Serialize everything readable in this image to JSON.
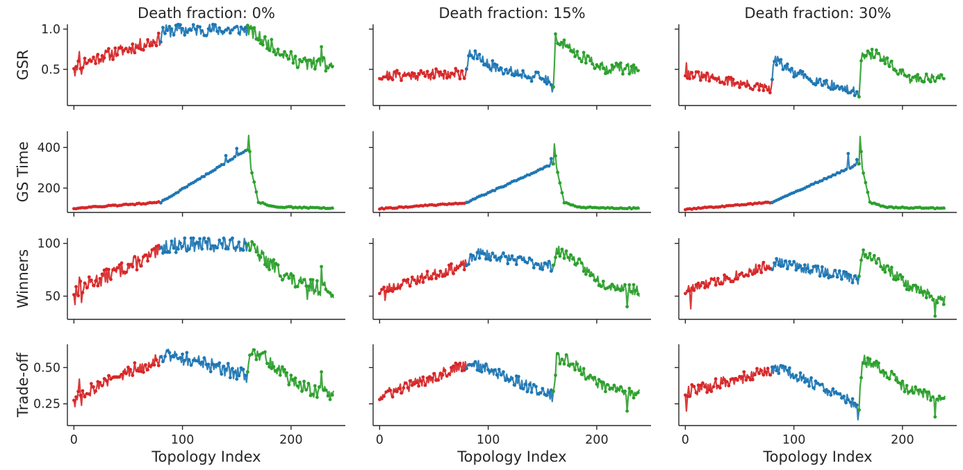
{
  "chart_data": {
    "type": "line",
    "grid": false,
    "columns": [
      {
        "title": "Death fraction: 0%"
      },
      {
        "title": "Death fraction: 15%"
      },
      {
        "title": "Death fraction: 30%"
      }
    ],
    "xlabel": "Topology Index",
    "xlim": [
      -6,
      250
    ],
    "xticks": [
      0,
      100,
      200
    ],
    "colors": {
      "first": "#d62728",
      "second": "#1f77b4",
      "third": "#2ca02c"
    },
    "segments": [
      [
        0,
        80
      ],
      [
        80,
        160
      ],
      [
        160,
        239
      ]
    ],
    "rows": [
      {
        "ylabel": "GSR",
        "ylim": [
          0.05,
          1.06
        ],
        "yticks": [
          0.5,
          1.0
        ],
        "tick_labels": [
          "0.5",
          "1.0"
        ]
      },
      {
        "ylabel": "GS Time",
        "ylim": [
          80,
          480
        ],
        "yticks": [
          200,
          400
        ],
        "tick_labels": [
          "200",
          "400"
        ]
      },
      {
        "ylabel": "Winners",
        "ylim": [
          28,
          105
        ],
        "yticks": [
          50,
          100
        ],
        "tick_labels": [
          "50",
          "100"
        ]
      },
      {
        "ylabel": "Trade-off",
        "ylim": [
          0.1,
          0.66
        ],
        "yticks": [
          0.25,
          0.5
        ],
        "tick_labels": [
          "0.25",
          "0.50"
        ]
      }
    ],
    "panels": [
      [
        {
          "anchors": [
            [
              0,
              0.55
            ],
            [
              80,
              0.88
            ],
            [
              80,
              0.97
            ],
            [
              100,
              0.99
            ],
            [
              160,
              0.99
            ],
            [
              160,
              1.0
            ],
            [
              175,
              0.85
            ],
            [
              205,
              0.6
            ],
            [
              239,
              0.55
            ]
          ],
          "noise": 0.08,
          "spikes": [
            [
              1,
              0.42
            ],
            [
              5,
              0.72
            ],
            [
              7,
              0.44
            ],
            [
              145,
              1.0
            ],
            [
              215,
              0.5
            ],
            [
              228,
              0.78
            ],
            [
              232,
              0.48
            ]
          ],
          "seed": 11
        },
        {
          "anchors": [
            [
              0,
              100
            ],
            [
              80,
              130
            ],
            [
              160,
              390
            ],
            [
              161,
              460
            ],
            [
              163,
              300
            ],
            [
              170,
              130
            ],
            [
              185,
              108
            ],
            [
              239,
              100
            ]
          ],
          "noise": 3,
          "spikes": [
            [
              150,
              395
            ],
            [
              140,
              360
            ]
          ],
          "seed": 12
        },
        {
          "anchors": [
            [
              0,
              55
            ],
            [
              80,
              92
            ],
            [
              80,
              97
            ],
            [
              100,
              99
            ],
            [
              160,
              99
            ],
            [
              160,
              100
            ],
            [
              175,
              85
            ],
            [
              205,
              62
            ],
            [
              239,
              55
            ]
          ],
          "noise": 7,
          "spikes": [
            [
              1,
              42
            ],
            [
              5,
              68
            ],
            [
              7,
              44
            ],
            [
              215,
              47
            ],
            [
              228,
              78
            ]
          ],
          "seed": 13
        },
        {
          "anchors": [
            [
              0,
              0.3
            ],
            [
              80,
              0.57
            ],
            [
              90,
              0.59
            ],
            [
              160,
              0.44
            ],
            [
              163,
              0.6
            ],
            [
              175,
              0.58
            ],
            [
              205,
              0.38
            ],
            [
              239,
              0.3
            ]
          ],
          "noise": 0.05,
          "spikes": [
            [
              1,
              0.23
            ],
            [
              5,
              0.42
            ],
            [
              7,
              0.24
            ],
            [
              228,
              0.47
            ]
          ],
          "seed": 14
        }
      ],
      [
        {
          "anchors": [
            [
              0,
              0.42
            ],
            [
              80,
              0.45
            ],
            [
              82,
              0.73
            ],
            [
              100,
              0.55
            ],
            [
              160,
              0.35
            ],
            [
              160,
              0.18
            ],
            [
              162,
              0.88
            ],
            [
              175,
              0.75
            ],
            [
              205,
              0.52
            ],
            [
              239,
              0.5
            ]
          ],
          "noise": 0.07,
          "spikes": [
            [
              159,
              0.22
            ],
            [
              163,
              0.87
            ]
          ],
          "seed": 21
        },
        {
          "anchors": [
            [
              0,
              98
            ],
            [
              80,
              128
            ],
            [
              160,
              320
            ],
            [
              161,
              415
            ],
            [
              163,
              300
            ],
            [
              170,
              130
            ],
            [
              185,
              105
            ],
            [
              239,
              100
            ]
          ],
          "noise": 3,
          "spikes": [
            [
              158,
              345
            ]
          ],
          "seed": 22
        },
        {
          "anchors": [
            [
              0,
              55
            ],
            [
              80,
              80
            ],
            [
              90,
              91
            ],
            [
              160,
              78
            ],
            [
              163,
              93
            ],
            [
              175,
              88
            ],
            [
              205,
              62
            ],
            [
              239,
              55
            ]
          ],
          "noise": 5,
          "spikes": [
            [
              5,
              46
            ],
            [
              228,
              40
            ]
          ],
          "seed": 23
        },
        {
          "anchors": [
            [
              0,
              0.3
            ],
            [
              80,
              0.52
            ],
            [
              85,
              0.53
            ],
            [
              160,
              0.3
            ],
            [
              163,
              0.57
            ],
            [
              175,
              0.54
            ],
            [
              205,
              0.37
            ],
            [
              239,
              0.32
            ]
          ],
          "noise": 0.04,
          "spikes": [
            [
              228,
              0.2
            ]
          ],
          "seed": 24
        },
        null
      ],
      [
        {
          "anchors": [
            [
              0,
              0.45
            ],
            [
              79,
              0.25
            ],
            [
              82,
              0.62
            ],
            [
              100,
              0.45
            ],
            [
              160,
              0.2
            ],
            [
              162,
              0.65
            ],
            [
              175,
              0.7
            ],
            [
              205,
              0.38
            ],
            [
              239,
              0.4
            ]
          ],
          "noise": 0.06,
          "spikes": [
            [
              1,
              0.58
            ],
            [
              85,
              0.66
            ],
            [
              159,
              0.18
            ]
          ],
          "seed": 31
        },
        {
          "anchors": [
            [
              0,
              95
            ],
            [
              80,
              130
            ],
            [
              160,
              320
            ],
            [
              161,
              455
            ],
            [
              163,
              300
            ],
            [
              170,
              130
            ],
            [
              185,
              105
            ],
            [
              239,
              100
            ]
          ],
          "noise": 3,
          "spikes": [
            [
              150,
              370
            ],
            [
              158,
              340
            ]
          ],
          "seed": 32
        },
        {
          "anchors": [
            [
              0,
              55
            ],
            [
              80,
              80
            ],
            [
              85,
              82
            ],
            [
              160,
              66
            ],
            [
              163,
              92
            ],
            [
              175,
              85
            ],
            [
              205,
              60
            ],
            [
              239,
              45
            ]
          ],
          "noise": 5,
          "spikes": [
            [
              5,
              38
            ],
            [
              230,
              31
            ]
          ],
          "seed": 33
        },
        {
          "anchors": [
            [
              0,
              0.33
            ],
            [
              80,
              0.48
            ],
            [
              85,
              0.5
            ],
            [
              160,
              0.24
            ],
            [
              163,
              0.55
            ],
            [
              175,
              0.52
            ],
            [
              205,
              0.35
            ],
            [
              239,
              0.28
            ]
          ],
          "noise": 0.04,
          "spikes": [
            [
              1,
              0.2
            ],
            [
              159,
              0.14
            ],
            [
              230,
              0.16
            ]
          ],
          "seed": 34
        }
      ]
    ]
  }
}
